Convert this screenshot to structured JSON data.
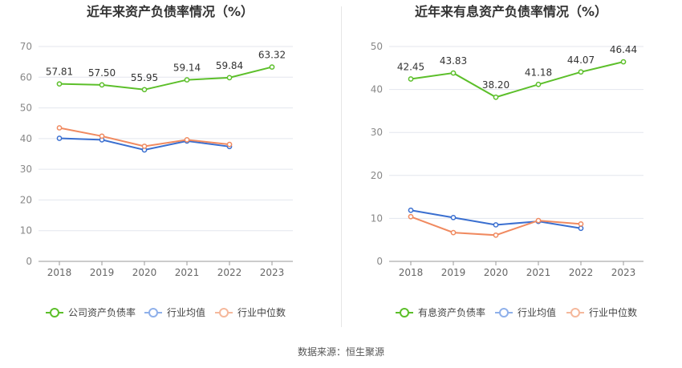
{
  "chart_data": [
    {
      "type": "line",
      "title": "近年来资产负债率情况（%）",
      "categories": [
        "2018",
        "2019",
        "2020",
        "2021",
        "2022",
        "2023"
      ],
      "ylim": [
        0,
        70
      ],
      "yticks": [
        0,
        10,
        20,
        30,
        40,
        50,
        60,
        70
      ],
      "grid": true,
      "legend": "bottom",
      "series": [
        {
          "name": "公司资产负债率",
          "color": "#5cbf2a",
          "labels": true,
          "values": [
            57.81,
            57.5,
            55.95,
            59.14,
            59.84,
            63.32
          ],
          "value_labels": [
            "57.81",
            "57.50",
            "55.95",
            "59.14",
            "59.84",
            "63.32"
          ]
        },
        {
          "name": "行业均值",
          "color": "#3a6fd0",
          "labels": false,
          "values": [
            40.1,
            39.6,
            36.3,
            39.2,
            37.4,
            null
          ]
        },
        {
          "name": "行业中位数",
          "color": "#f08a60",
          "labels": false,
          "values": [
            43.5,
            40.8,
            37.5,
            39.6,
            38.1,
            null
          ]
        }
      ]
    },
    {
      "type": "line",
      "title": "近年来有息资产负债率情况（%）",
      "categories": [
        "2018",
        "2019",
        "2020",
        "2021",
        "2022",
        "2023"
      ],
      "ylim": [
        0,
        50
      ],
      "yticks": [
        0,
        10,
        20,
        30,
        40,
        50
      ],
      "grid": true,
      "legend": "bottom",
      "series": [
        {
          "name": "有息资产负债率",
          "color": "#5cbf2a",
          "labels": true,
          "values": [
            42.45,
            43.83,
            38.2,
            41.18,
            44.07,
            46.44
          ],
          "value_labels": [
            "42.45",
            "43.83",
            "38.20",
            "41.18",
            "44.07",
            "46.44"
          ]
        },
        {
          "name": "行业均值",
          "color": "#3a6fd0",
          "labels": false,
          "values": [
            11.9,
            10.2,
            8.5,
            9.3,
            7.7,
            null
          ]
        },
        {
          "name": "行业中位数",
          "color": "#f08a60",
          "labels": false,
          "values": [
            10.4,
            6.7,
            6.1,
            9.5,
            8.7,
            null
          ]
        }
      ]
    }
  ],
  "source": "数据来源：恒生聚源"
}
